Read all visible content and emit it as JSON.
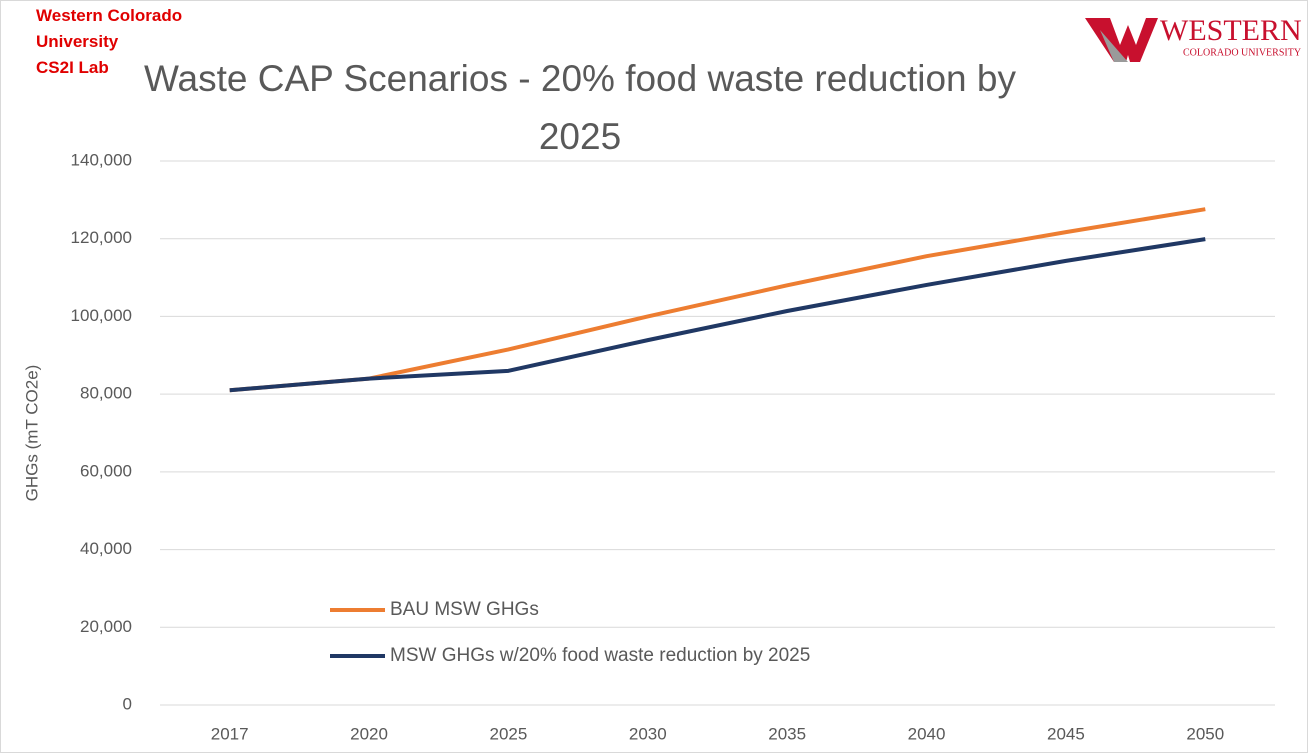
{
  "chart_data": {
    "type": "line",
    "title": "Waste CAP Scenarios - 20% food waste reduction by 2025",
    "ylabel": "GHGs (mT CO2e)",
    "annotations": [
      "Western Colorado",
      "University",
      "CS2I Lab"
    ],
    "logo": {
      "name": "WESTERN",
      "subtitle": "COLORADO UNIVERSITY"
    },
    "categories": [
      "2017",
      "2020",
      "2025",
      "2030",
      "2035",
      "2040",
      "2045",
      "2050"
    ],
    "series": [
      {
        "name": "BAU MSW GHGs",
        "color": "#ed7d31",
        "values": [
          81000,
          84000,
          91500,
          100000,
          108000,
          115500,
          121700,
          127600
        ]
      },
      {
        "name": "MSW GHGs w/20% food waste reduction by 2025",
        "color": "#203864",
        "values": [
          81000,
          84000,
          86000,
          93900,
          101400,
          108100,
          114300,
          119900
        ]
      }
    ],
    "ylim": [
      0,
      140000
    ],
    "yticks": [
      0,
      {
        "value": 20000,
        "label": "20,000"
      },
      {
        "value": 40000,
        "label": "40,000"
      },
      {
        "value": 60000,
        "label": "60,000"
      },
      {
        "value": 80000,
        "label": "80,000"
      },
      {
        "value": 100000,
        "label": "100,000"
      },
      {
        "value": 120000,
        "label": "120,000"
      },
      {
        "value": 140000,
        "label": "140,000"
      }
    ],
    "grid": true,
    "legend": "lower-left"
  }
}
